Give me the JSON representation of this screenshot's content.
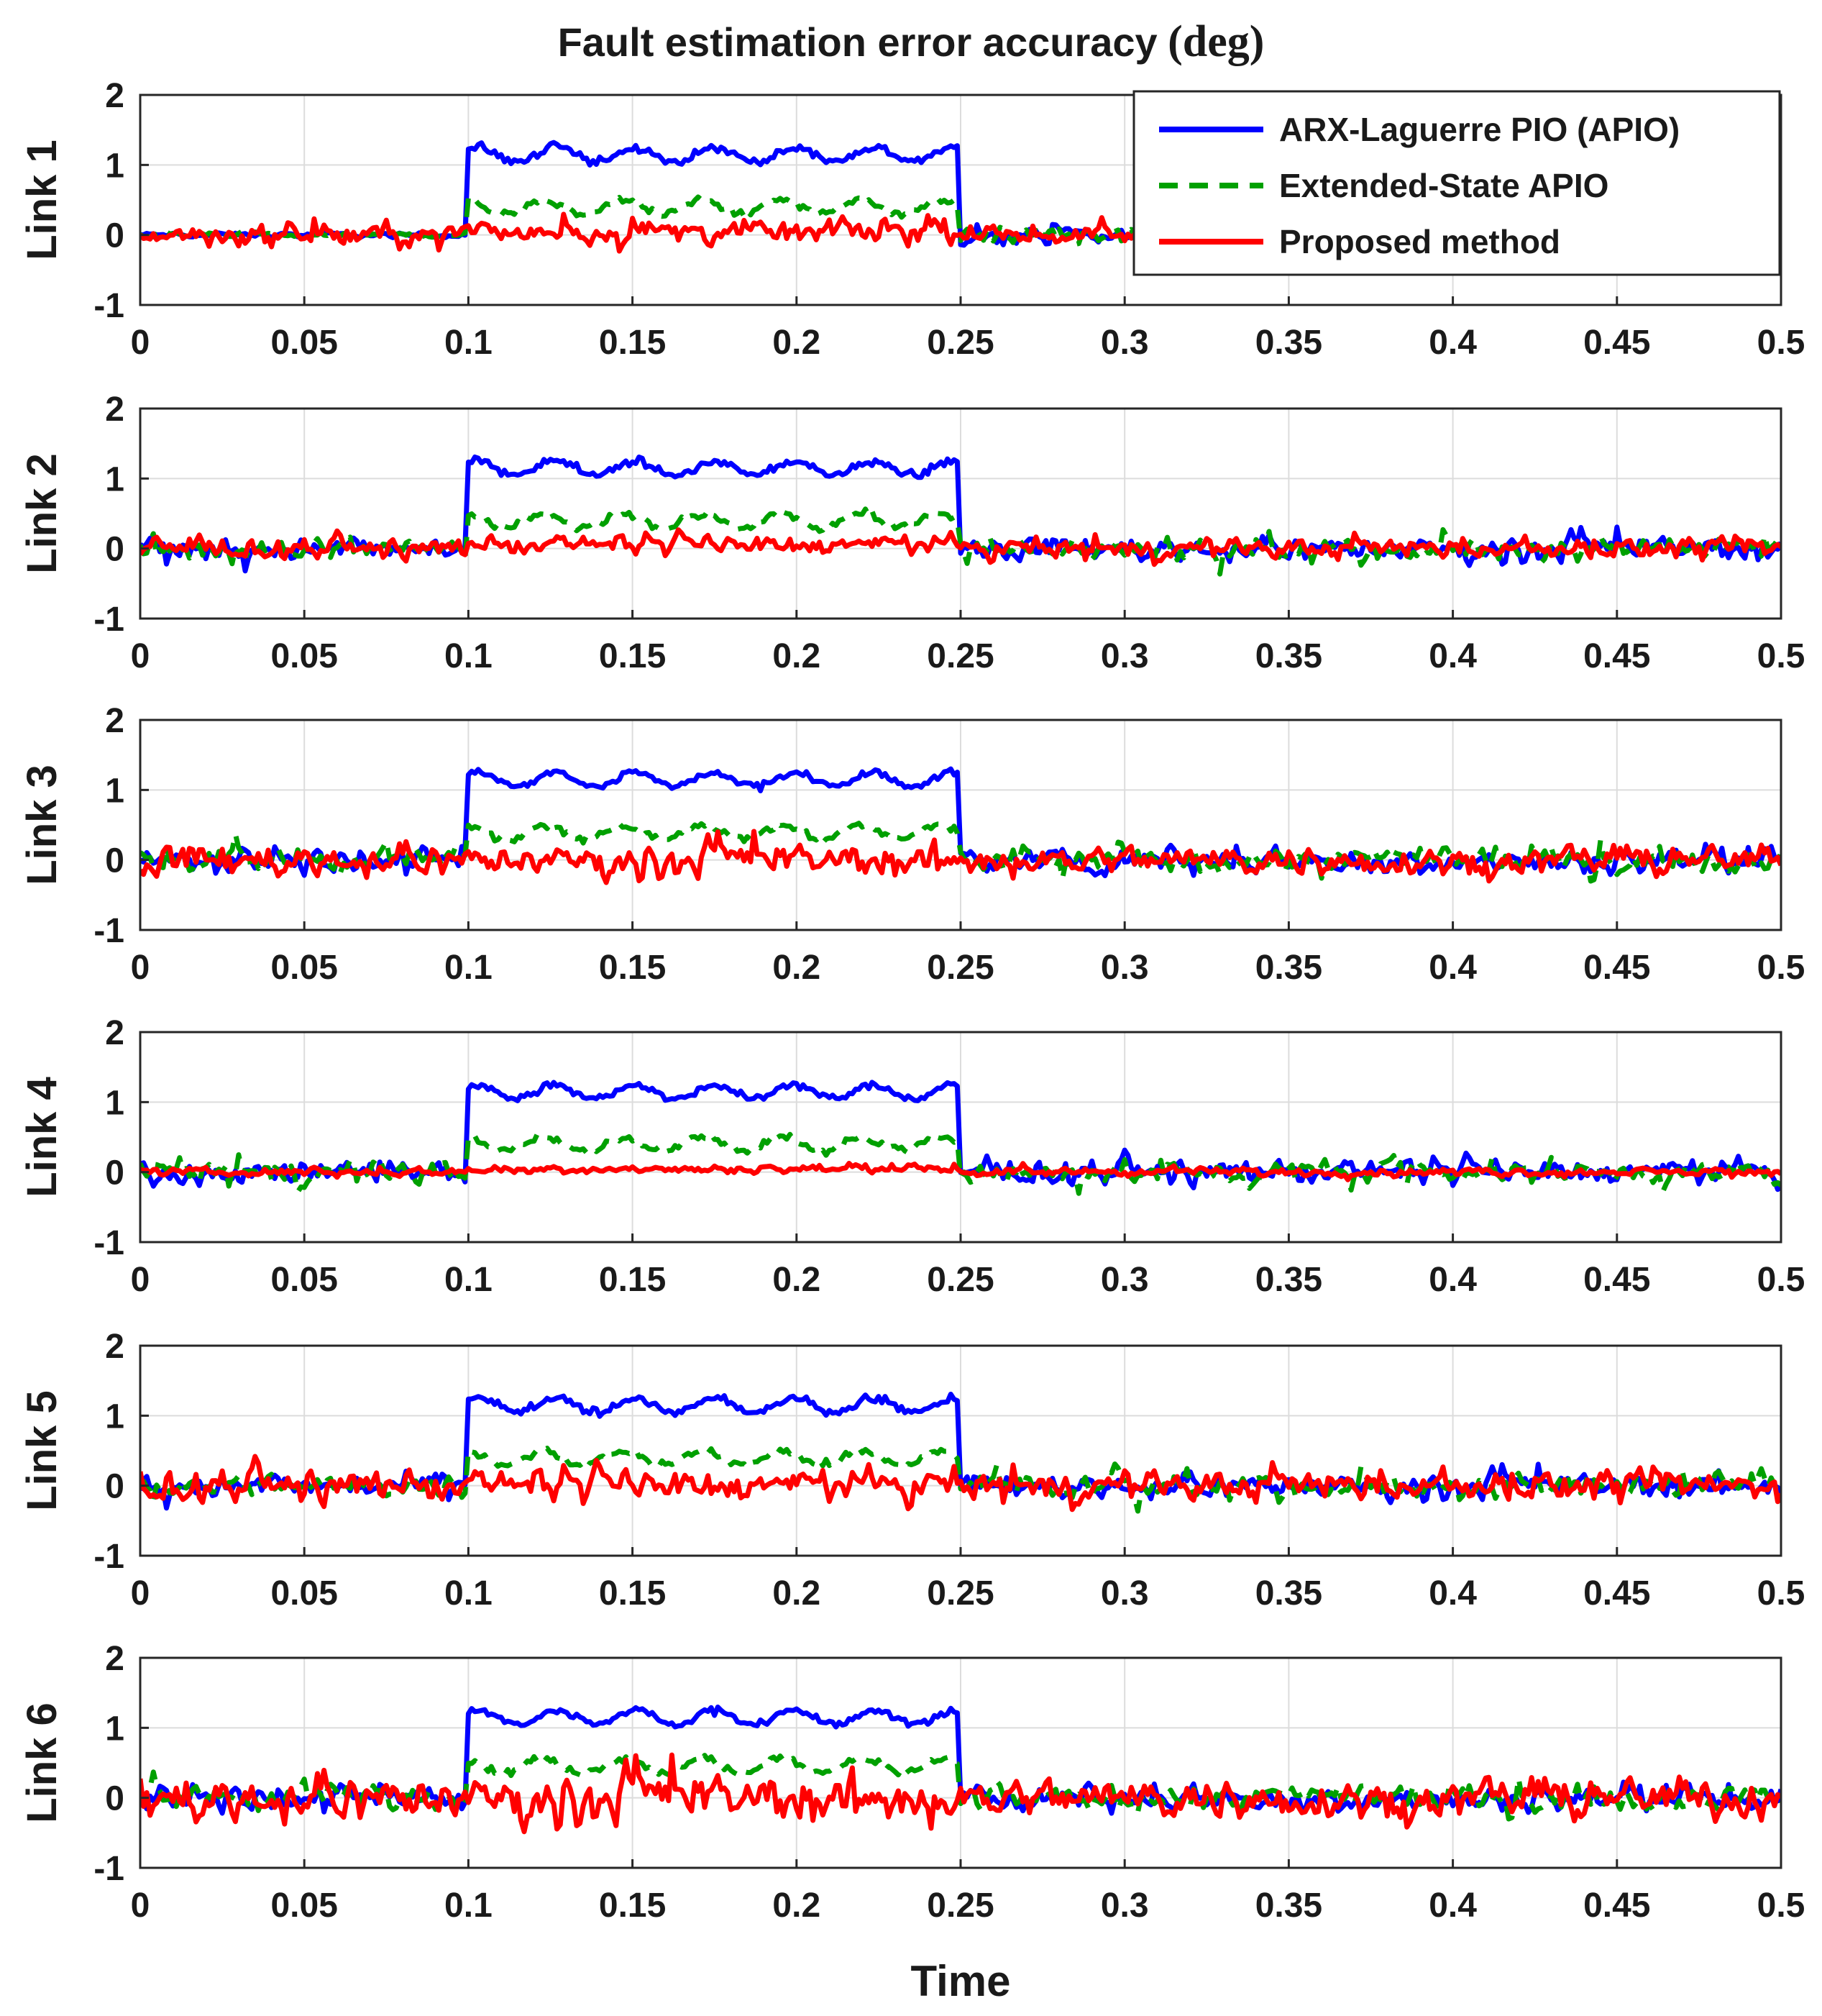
{
  "chart_data": {
    "type": "line",
    "title": "Fault estimation error accuracy",
    "title_unit": "(deg)",
    "xlabel": "Time",
    "xlim": [
      0,
      0.5
    ],
    "xticks": [
      0,
      0.05,
      0.1,
      0.15,
      0.2,
      0.25,
      0.3,
      0.35,
      0.4,
      0.45,
      0.5
    ],
    "xtick_labels": [
      "0",
      "0.05",
      "0.1",
      "0.15",
      "0.2",
      "0.25",
      "0.3",
      "0.35",
      "0.4",
      "0.45",
      "0.5"
    ],
    "ylim": [
      -1,
      2
    ],
    "yticks": [
      -1,
      0,
      1,
      2
    ],
    "ytick_labels": [
      "-1",
      "0",
      "1",
      "2"
    ],
    "grid": true,
    "legend": {
      "location": "top-right",
      "subplot": 0,
      "entries": [
        "ARX-Laguerre PIO (APIO)",
        "Extended-State APIO",
        "Proposed method"
      ]
    },
    "series_styles": [
      {
        "name": "ARX-Laguerre PIO (APIO)",
        "color": "#0000ff",
        "dash": "solid"
      },
      {
        "name": "Extended-State APIO",
        "color": "#00a000",
        "dash": "dashed"
      },
      {
        "name": "Proposed method",
        "color": "#ff0000",
        "dash": "solid"
      }
    ],
    "fault_window": [
      0.1,
      0.25
    ],
    "subplots": [
      {
        "ylabel": "Link 1",
        "series": [
          {
            "name": "ARX-Laguerre PIO (APIO)",
            "fault_level": 1.15,
            "noise_before": 0.03,
            "noise_after": 0.12
          },
          {
            "name": "Extended-State APIO",
            "fault_level": 0.4,
            "noise_before": 0.03,
            "noise_after": 0.12
          },
          {
            "name": "Proposed method",
            "fault_level": 0.05,
            "noise_before": 0.15,
            "noise_after": 0.1
          }
        ]
      },
      {
        "ylabel": "Link 2",
        "series": [
          {
            "name": "ARX-Laguerre PIO (APIO)",
            "fault_level": 1.15,
            "noise_before": 0.15,
            "noise_after": 0.15
          },
          {
            "name": "Extended-State APIO",
            "fault_level": 0.4,
            "noise_before": 0.15,
            "noise_after": 0.15
          },
          {
            "name": "Proposed method",
            "fault_level": 0.05,
            "noise_before": 0.12,
            "noise_after": 0.12
          }
        ]
      },
      {
        "ylabel": "Link 3",
        "series": [
          {
            "name": "ARX-Laguerre PIO (APIO)",
            "fault_level": 1.15,
            "noise_before": 0.15,
            "noise_after": 0.15
          },
          {
            "name": "Extended-State APIO",
            "fault_level": 0.4,
            "noise_before": 0.15,
            "noise_after": 0.15
          },
          {
            "name": "Proposed method",
            "fault_level": 0.0,
            "noise_before": 0.2,
            "noise_after": 0.18
          }
        ]
      },
      {
        "ylabel": "Link 4",
        "series": [
          {
            "name": "ARX-Laguerre PIO (APIO)",
            "fault_level": 1.15,
            "noise_before": 0.15,
            "noise_after": 0.15
          },
          {
            "name": "Extended-State APIO",
            "fault_level": 0.4,
            "noise_before": 0.15,
            "noise_after": 0.15
          },
          {
            "name": "Proposed method",
            "fault_level": 0.05,
            "noise_before": 0.05,
            "noise_after": 0.05
          }
        ]
      },
      {
        "ylabel": "Link 5",
        "series": [
          {
            "name": "ARX-Laguerre PIO (APIO)",
            "fault_level": 1.15,
            "noise_before": 0.15,
            "noise_after": 0.15
          },
          {
            "name": "Extended-State APIO",
            "fault_level": 0.4,
            "noise_before": 0.15,
            "noise_after": 0.15
          },
          {
            "name": "Proposed method",
            "fault_level": 0.0,
            "noise_before": 0.2,
            "noise_after": 0.18
          }
        ]
      },
      {
        "ylabel": "Link 6",
        "series": [
          {
            "name": "ARX-Laguerre PIO (APIO)",
            "fault_level": 1.15,
            "noise_before": 0.15,
            "noise_after": 0.15
          },
          {
            "name": "Extended-State APIO",
            "fault_level": 0.45,
            "noise_before": 0.15,
            "noise_after": 0.15
          },
          {
            "name": "Proposed method",
            "fault_level": 0.0,
            "noise_before": 0.3,
            "noise_after": 0.25
          }
        ]
      }
    ]
  }
}
